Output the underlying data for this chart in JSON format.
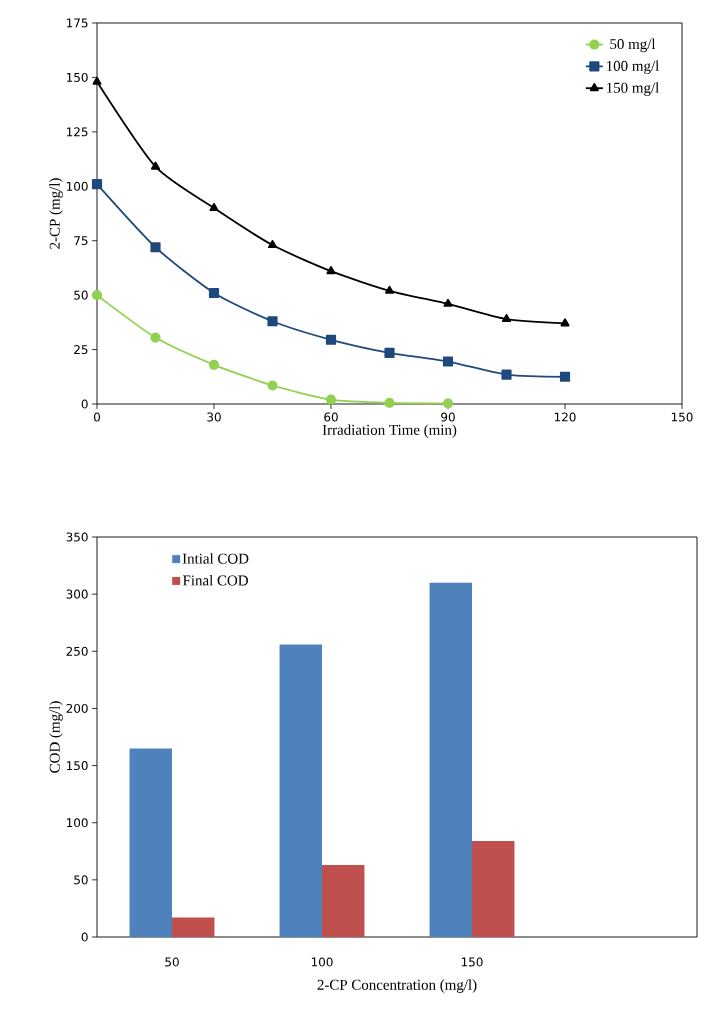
{
  "chart_data": [
    {
      "type": "line",
      "xlabel": "Irradiation Time (min)",
      "ylabel": "2-CP (mg/l)",
      "xlim": [
        0,
        150
      ],
      "xticks": [
        0,
        30,
        60,
        90,
        120,
        150
      ],
      "ylim": [
        0,
        175
      ],
      "yticks": [
        0,
        25,
        50,
        75,
        100,
        125,
        150,
        175
      ],
      "legend": "top right",
      "series": [
        {
          "name": "50 mg/l",
          "color": "#92d050",
          "marker": "circle",
          "x": [
            0,
            15,
            30,
            45,
            60,
            75,
            90
          ],
          "values": [
            50,
            30.5,
            18,
            8.5,
            2,
            0.5,
            0.3
          ]
        },
        {
          "name": "100 mg/l",
          "color": "#1f497d",
          "marker": "square",
          "x": [
            0,
            15,
            30,
            45,
            60,
            75,
            90,
            105,
            120
          ],
          "values": [
            101,
            72,
            51,
            38,
            29.5,
            23.5,
            19.5,
            13.5,
            12.5
          ]
        },
        {
          "name": "150 mg/l",
          "color": "#000000",
          "marker": "triangle",
          "x": [
            0,
            15,
            30,
            45,
            60,
            75,
            90,
            105,
            120
          ],
          "values": [
            148,
            109,
            90,
            73,
            61,
            52,
            46,
            39,
            37
          ]
        }
      ]
    },
    {
      "type": "bar",
      "xlabel": "2-CP Concentration (mg/l)",
      "ylabel": "COD (mg/l)",
      "categories": [
        "50",
        "100",
        "150",
        null
      ],
      "ylim": [
        0,
        350
      ],
      "yticks": [
        0,
        50,
        100,
        150,
        200,
        250,
        300,
        350
      ],
      "legend": "top left",
      "series": [
        {
          "name": "Intial COD",
          "color": "#4f81bd",
          "values": [
            165,
            256,
            310,
            null
          ]
        },
        {
          "name": "Final COD",
          "color": "#c0504d",
          "values": [
            17,
            63,
            84,
            null
          ]
        }
      ]
    }
  ]
}
